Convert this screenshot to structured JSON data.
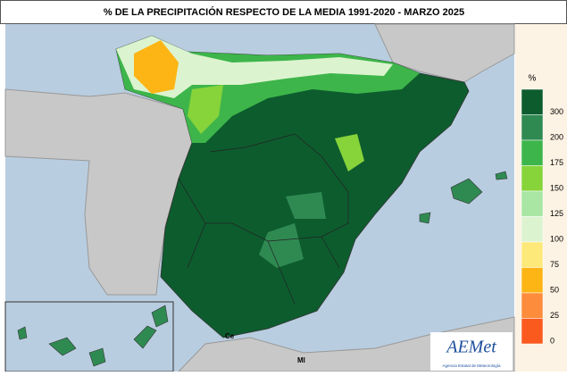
{
  "header": {
    "title": "% DE LA PRECIPITACIÓN RESPECTO DE LA MEDIA 1991-2020 - MARZO 2025"
  },
  "legend": {
    "unit": "%",
    "items": [
      {
        "label": "300",
        "color": "#0d5c2e"
      },
      {
        "label": "200",
        "color": "#2f8a52"
      },
      {
        "label": "175",
        "color": "#3db54a"
      },
      {
        "label": "150",
        "color": "#86d43a"
      },
      {
        "label": "125",
        "color": "#a9e6a4"
      },
      {
        "label": "100",
        "color": "#dcf3cf"
      },
      {
        "label": "75",
        "color": "#fde97a"
      },
      {
        "label": "50",
        "color": "#fdb515"
      },
      {
        "label": "25",
        "color": "#fd8c3c"
      },
      {
        "label": "0",
        "color": "#fb5a1e"
      }
    ]
  },
  "map": {
    "labels": [
      "Ce",
      "Ml"
    ]
  },
  "logo": {
    "name": "AEMet",
    "subtitle": "Agencia Estatal de Meteorología"
  }
}
